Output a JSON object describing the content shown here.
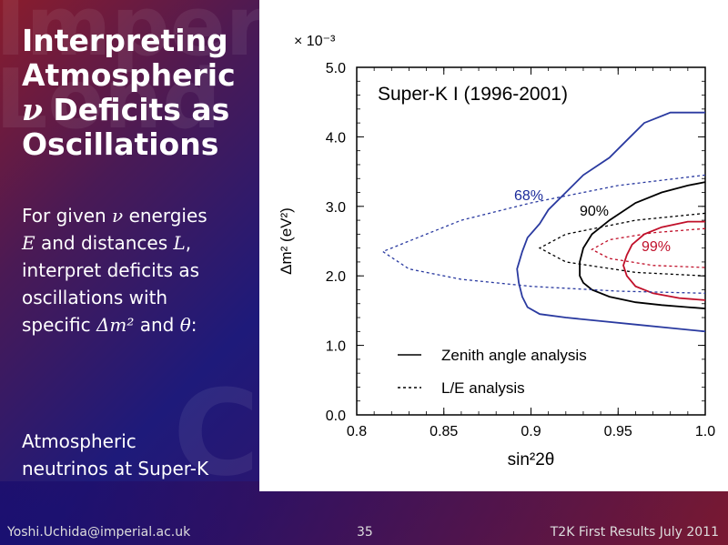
{
  "slide": {
    "title_line1": "Interpreting",
    "title_line2": "Atmospheric",
    "title_nu": "ν",
    "title_line3_rest": " Deficits as",
    "title_line4": "Oscillations",
    "para1": {
      "t1": "For given ",
      "nu": "ν",
      "t2": " energies",
      "E": "E",
      "t3": " and distances ",
      "L": "L",
      "t4": ",",
      "t5": "interpret deficits as",
      "t6": "oscillations with",
      "t7": "specific ",
      "dm": "Δm²",
      "t8": " and ",
      "theta": "θ",
      "t9": ":"
    },
    "para2_line1": "Atmospheric",
    "para2_line2": "neutrinos at Super-K",
    "footer_left": "Yoshi.Uchida@imperial.ac.uk",
    "footer_center": "35",
    "footer_right": "T2K First Results July 2011"
  },
  "chart_data": {
    "type": "line",
    "title": "Super-K I (1996-2001)",
    "xlabel": "sin²2θ",
    "ylabel": "Δm² (eV²)",
    "y_multiplier": "× 10⁻³",
    "xlim": [
      0.8,
      1.0
    ],
    "ylim": [
      0.0,
      5.0
    ],
    "x_ticks": [
      "0.8",
      "0.85",
      "0.9",
      "0.95",
      "1.0"
    ],
    "y_ticks": [
      "0.0",
      "1.0",
      "2.0",
      "3.0",
      "4.0",
      "5.0"
    ],
    "legend": [
      {
        "label": "Zenith angle analysis",
        "style": "solid"
      },
      {
        "label": "L/E analysis",
        "style": "dashed"
      }
    ],
    "legend_position": "lower-center",
    "contour_labels": [
      {
        "label": "68%",
        "color": "#1a2a9a"
      },
      {
        "label": "90%",
        "color": "#000000"
      },
      {
        "label": "99%",
        "color": "#c0102a"
      }
    ],
    "series": [
      {
        "name": "68%",
        "analysis": "zenith",
        "style": "solid",
        "color": "#2a3aa0",
        "x": [
          1.0,
          0.98,
          0.965,
          0.955,
          0.945,
          0.93,
          0.92,
          0.91,
          0.905,
          0.898,
          0.895,
          0.892,
          0.893,
          0.895,
          0.898,
          0.905,
          0.92,
          0.94,
          0.96,
          0.98,
          1.0
        ],
        "y": [
          4.35,
          4.35,
          4.2,
          3.95,
          3.7,
          3.45,
          3.2,
          2.95,
          2.75,
          2.55,
          2.35,
          2.1,
          1.9,
          1.7,
          1.55,
          1.45,
          1.4,
          1.35,
          1.3,
          1.25,
          1.2
        ]
      },
      {
        "name": "90%",
        "analysis": "zenith",
        "style": "solid",
        "color": "#000000",
        "x": [
          1.0,
          0.99,
          0.975,
          0.96,
          0.945,
          0.935,
          0.93,
          0.928,
          0.928,
          0.93,
          0.935,
          0.945,
          0.96,
          0.975,
          0.99,
          1.0
        ],
        "y": [
          3.35,
          3.3,
          3.2,
          3.05,
          2.8,
          2.6,
          2.4,
          2.2,
          2.0,
          1.9,
          1.8,
          1.7,
          1.62,
          1.58,
          1.55,
          1.53
        ]
      },
      {
        "name": "99%",
        "analysis": "zenith",
        "style": "solid",
        "color": "#c0102a",
        "x": [
          1.0,
          0.99,
          0.975,
          0.965,
          0.958,
          0.955,
          0.953,
          0.955,
          0.96,
          0.97,
          0.985,
          1.0
        ],
        "y": [
          2.78,
          2.78,
          2.7,
          2.6,
          2.45,
          2.3,
          2.15,
          2.0,
          1.85,
          1.75,
          1.68,
          1.65
        ]
      },
      {
        "name": "68%",
        "analysis": "L/E",
        "style": "dashed",
        "color": "#2a3aa0",
        "x": [
          1.0,
          0.95,
          0.9,
          0.86,
          0.83,
          0.815,
          0.83,
          0.86,
          0.9,
          0.95,
          1.0
        ],
        "y": [
          3.45,
          3.3,
          3.05,
          2.8,
          2.5,
          2.35,
          2.1,
          1.95,
          1.85,
          1.78,
          1.75
        ]
      },
      {
        "name": "90%",
        "analysis": "L/E",
        "style": "dashed",
        "color": "#000000",
        "x": [
          1.0,
          0.96,
          0.92,
          0.905,
          0.92,
          0.96,
          1.0
        ],
        "y": [
          2.9,
          2.8,
          2.6,
          2.4,
          2.2,
          2.05,
          2.0
        ]
      },
      {
        "name": "99%",
        "analysis": "L/E",
        "style": "dashed",
        "color": "#c0102a",
        "x": [
          1.0,
          0.97,
          0.945,
          0.935,
          0.945,
          0.97,
          1.0
        ],
        "y": [
          2.68,
          2.62,
          2.52,
          2.38,
          2.25,
          2.15,
          2.12
        ]
      }
    ]
  }
}
